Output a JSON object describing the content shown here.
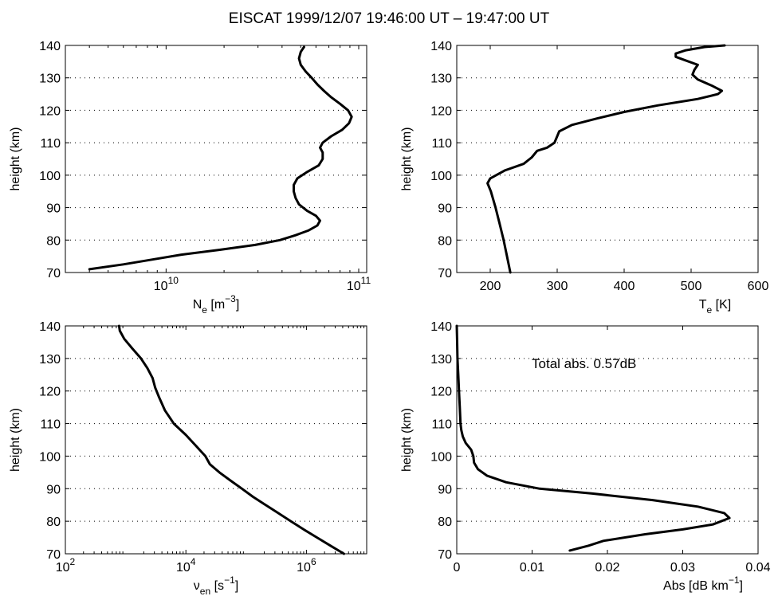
{
  "figure": {
    "title": "EISCAT 1999/12/07 19:46:00 UT – 19:47:00 UT"
  },
  "chart_data": [
    {
      "type": "line",
      "scale_x": "log",
      "xlim": [
        3000000000.0,
        110000000000.0
      ],
      "ylim": [
        70,
        140
      ],
      "grid": "dotted-horizontal",
      "xlabel": "N",
      "xlabel_sub": "e",
      "xlabel_unit_pre": "[m",
      "xlabel_unit_sup": "−3",
      "xlabel_unit_post": "]",
      "ylabel": "height (km)",
      "x_ticks": [
        {
          "value": 10000000000.0,
          "base": "10",
          "exp": "10"
        },
        {
          "value": 100000000000.0,
          "base": "10",
          "exp": "11"
        }
      ],
      "y_ticks": [
        70,
        80,
        90,
        100,
        110,
        120,
        130,
        140
      ],
      "series": [
        {
          "points": [
            [
              4000000000.0,
              71
            ],
            [
              6000000000.0,
              72.5
            ],
            [
              8500000000.0,
              74
            ],
            [
              12000000000.0,
              75.5
            ],
            [
              19000000000.0,
              77
            ],
            [
              29000000000.0,
              78.5
            ],
            [
              39000000000.0,
              80
            ],
            [
              47000000000.0,
              81.5
            ],
            [
              55000000000.0,
              83
            ],
            [
              61000000000.0,
              84.5
            ],
            [
              63000000000.0,
              86
            ],
            [
              60000000000.0,
              87.5
            ],
            [
              54000000000.0,
              89
            ],
            [
              49000000000.0,
              91
            ],
            [
              47000000000.0,
              93
            ],
            [
              46000000000.0,
              95
            ],
            [
              46000000000.0,
              97
            ],
            [
              48000000000.0,
              99
            ],
            [
              54000000000.0,
              101
            ],
            [
              62000000000.0,
              103
            ],
            [
              65000000000.0,
              105
            ],
            [
              65000000000.0,
              107
            ],
            [
              63000000000.0,
              108.5
            ],
            [
              65000000000.0,
              110
            ],
            [
              72000000000.0,
              112
            ],
            [
              82000000000.0,
              114
            ],
            [
              89000000000.0,
              116
            ],
            [
              92000000000.0,
              118
            ],
            [
              88000000000.0,
              120
            ],
            [
              80000000000.0,
              122
            ],
            [
              72000000000.0,
              124
            ],
            [
              66000000000.0,
              126
            ],
            [
              61000000000.0,
              128
            ],
            [
              57000000000.0,
              130
            ],
            [
              53000000000.0,
              132
            ],
            [
              50000000000.0,
              134
            ],
            [
              49000000000.0,
              136
            ],
            [
              50000000000.0,
              138
            ],
            [
              52000000000.0,
              139.5
            ]
          ]
        }
      ]
    },
    {
      "type": "line",
      "scale_x": "linear",
      "xlim": [
        150,
        600
      ],
      "ylim": [
        70,
        140
      ],
      "grid": "dotted-horizontal",
      "xlabel": "T",
      "xlabel_sub": "e",
      "xlabel_unit_pre": "[K]",
      "xlabel_unit_sup": "",
      "xlabel_unit_post": "",
      "ylabel": "height (km)",
      "x_ticks": [
        {
          "value": 200,
          "label": "200"
        },
        {
          "value": 300,
          "label": "300"
        },
        {
          "value": 400,
          "label": "400"
        },
        {
          "value": 500,
          "label": "500"
        },
        {
          "value": 600,
          "label": "600"
        }
      ],
      "y_ticks": [
        70,
        80,
        90,
        100,
        110,
        120,
        130,
        140
      ],
      "series": [
        {
          "points": [
            [
              230,
              70
            ],
            [
              225,
              75
            ],
            [
              220,
              80
            ],
            [
              214,
              85
            ],
            [
              208,
              90
            ],
            [
              201,
              95
            ],
            [
              196,
              97.5
            ],
            [
              200,
              99
            ],
            [
              222,
              101.5
            ],
            [
              250,
              103.5
            ],
            [
              262,
              105.5
            ],
            [
              270,
              107.5
            ],
            [
              285,
              108.5
            ],
            [
              296,
              110
            ],
            [
              300,
              112
            ],
            [
              303,
              113.5
            ],
            [
              322,
              115.5
            ],
            [
              360,
              117.5
            ],
            [
              400,
              119.5
            ],
            [
              450,
              121.5
            ],
            [
              510,
              123.5
            ],
            [
              540,
              125
            ],
            [
              546,
              126
            ],
            [
              532,
              127.5
            ],
            [
              510,
              129.5
            ],
            [
              502,
              131
            ],
            [
              505,
              132.5
            ],
            [
              510,
              134
            ],
            [
              490,
              135.5
            ],
            [
              477,
              136.5
            ],
            [
              477,
              137.5
            ],
            [
              492,
              138.5
            ],
            [
              520,
              139.5
            ],
            [
              550,
              140
            ]
          ]
        }
      ]
    },
    {
      "type": "line",
      "scale_x": "log",
      "xlim": [
        100,
        10000000
      ],
      "ylim": [
        70,
        140
      ],
      "grid": "dotted-horizontal",
      "xlabel": "ν",
      "xlabel_sub": "en",
      "xlabel_unit_pre": "[s",
      "xlabel_unit_sup": "−1",
      "xlabel_unit_post": "]",
      "ylabel": "height (km)",
      "x_ticks": [
        {
          "value": 100,
          "base": "10",
          "exp": "2"
        },
        {
          "value": 10000,
          "base": "10",
          "exp": "4"
        },
        {
          "value": 1000000,
          "base": "10",
          "exp": "6"
        }
      ],
      "y_ticks": [
        70,
        80,
        90,
        100,
        110,
        120,
        130,
        140
      ],
      "series": [
        {
          "points": [
            [
              4200000.0,
              70
            ],
            [
              2500000.0,
              72.5
            ],
            [
              1500000.0,
              75
            ],
            [
              900000.0,
              77.5
            ],
            [
              550000.0,
              80
            ],
            [
              340000.0,
              82.5
            ],
            [
              210000.0,
              85
            ],
            [
              130000.0,
              87.5
            ],
            [
              85000.0,
              90
            ],
            [
              55000.0,
              92.5
            ],
            [
              36000.0,
              95
            ],
            [
              25000.0,
              97.5
            ],
            [
              21000.0,
              100
            ],
            [
              15000.0,
              103
            ],
            [
              10000.0,
              106.5
            ],
            [
              6300.0,
              110
            ],
            [
              4500.0,
              114
            ],
            [
              3600.0,
              118
            ],
            [
              3100.0,
              121
            ],
            [
              2800.0,
              124
            ],
            [
              2300.0,
              127
            ],
            [
              1800.0,
              130
            ],
            [
              1300.0,
              133
            ],
            [
              950,
              136
            ],
            [
              800,
              138.5
            ],
            [
              780,
              140
            ]
          ]
        }
      ]
    },
    {
      "type": "line",
      "scale_x": "linear",
      "xlim": [
        0,
        0.04
      ],
      "ylim": [
        70,
        140
      ],
      "grid": "dotted-horizontal",
      "xlabel": "Abs [dB km",
      "xlabel_sub": "",
      "xlabel_unit_pre": "",
      "xlabel_unit_sup": "−1",
      "xlabel_unit_post": "]",
      "ylabel": "height (km)",
      "annotation": "Total abs. 0.57dB",
      "x_ticks": [
        {
          "value": 0,
          "label": "0"
        },
        {
          "value": 0.01,
          "label": "0.01"
        },
        {
          "value": 0.02,
          "label": "0.02"
        },
        {
          "value": 0.03,
          "label": "0.03"
        },
        {
          "value": 0.04,
          "label": "0.04"
        }
      ],
      "y_ticks": [
        70,
        80,
        90,
        100,
        110,
        120,
        130,
        140
      ],
      "series": [
        {
          "points": [
            [
              0.015,
              71
            ],
            [
              0.0175,
              72.5
            ],
            [
              0.0195,
              74
            ],
            [
              0.025,
              76
            ],
            [
              0.03,
              77.5
            ],
            [
              0.034,
              79
            ],
            [
              0.0362,
              81
            ],
            [
              0.0355,
              82.5
            ],
            [
              0.032,
              84.5
            ],
            [
              0.026,
              86.5
            ],
            [
              0.018,
              88.5
            ],
            [
              0.011,
              90
            ],
            [
              0.0065,
              92
            ],
            [
              0.004,
              94
            ],
            [
              0.0028,
              96
            ],
            [
              0.0023,
              98
            ],
            [
              0.0022,
              100
            ],
            [
              0.0019,
              102
            ],
            [
              0.0012,
              104
            ],
            [
              0.0008,
              106
            ],
            [
              0.0006,
              108
            ],
            [
              0.0005,
              110
            ],
            [
              0.0004,
              115
            ],
            [
              0.0003,
              120
            ],
            [
              0.0002,
              125
            ],
            [
              0.0001,
              130
            ],
            [
              5e-05,
              135
            ],
            [
              0.0,
              140
            ]
          ]
        }
      ]
    }
  ]
}
